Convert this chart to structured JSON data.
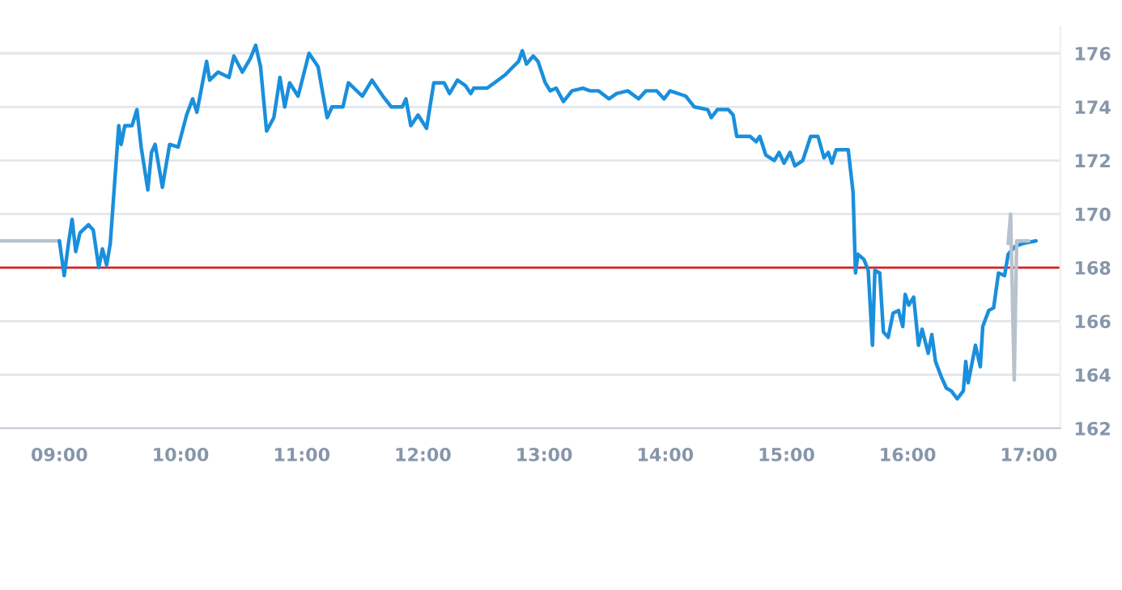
{
  "chart_data": {
    "type": "line",
    "series": [
      {
        "color": "#b8c2cc",
        "x": [
          8.51,
          9.0
        ],
        "values": [
          169.0,
          169.0
        ]
      },
      {
        "color": "#1a8fdc",
        "x": [
          9.0,
          9.04,
          9.075,
          9.105,
          9.135,
          9.17,
          9.24,
          9.28,
          9.325,
          9.355,
          9.39,
          9.42,
          9.49,
          9.51,
          9.54,
          9.6,
          9.64,
          9.675,
          9.73,
          9.76,
          9.79,
          9.85,
          9.91,
          9.98,
          10.05,
          10.1,
          10.135,
          10.215,
          10.24,
          10.31,
          10.4,
          10.44,
          10.51,
          10.575,
          10.62,
          10.66,
          10.71,
          10.77,
          10.82,
          10.86,
          10.9,
          10.97,
          11.06,
          11.135,
          11.17,
          11.21,
          11.25,
          11.34,
          11.385,
          11.5,
          11.58,
          11.67,
          11.74,
          11.83,
          11.86,
          11.9,
          11.96,
          12.03,
          12.09,
          12.175,
          12.22,
          12.285,
          12.35,
          12.395,
          12.42,
          12.53,
          12.59,
          12.68,
          12.745,
          12.79,
          12.82,
          12.855,
          12.91,
          12.95,
          13.01,
          13.05,
          13.1,
          13.16,
          13.23,
          13.32,
          13.38,
          13.45,
          13.535,
          13.6,
          13.69,
          13.78,
          13.84,
          13.93,
          13.99,
          14.04,
          14.17,
          14.24,
          14.35,
          14.38,
          14.43,
          14.52,
          14.56,
          14.59,
          14.7,
          14.75,
          14.78,
          14.83,
          14.9,
          14.94,
          14.98,
          15.03,
          15.07,
          15.135,
          15.2,
          15.26,
          15.31,
          15.345,
          15.375,
          15.41,
          15.51,
          15.55,
          15.57,
          15.59,
          15.64,
          15.675,
          15.71,
          15.73,
          15.77,
          15.8,
          15.84,
          15.88,
          15.925,
          15.96,
          15.98,
          16.01,
          16.05,
          16.09,
          16.12,
          16.17,
          16.2,
          16.23,
          16.28,
          16.32,
          16.36,
          16.41,
          16.46,
          16.48,
          16.5,
          16.56,
          16.6,
          16.62,
          16.67,
          16.71,
          16.75,
          16.8,
          16.83,
          16.89,
          16.95,
          17.06
        ],
        "values": [
          169.0,
          167.7,
          168.9,
          169.8,
          168.6,
          169.3,
          169.6,
          169.4,
          168.0,
          168.7,
          168.1,
          168.9,
          173.3,
          172.6,
          173.3,
          173.3,
          173.9,
          172.5,
          170.9,
          172.3,
          172.6,
          171.0,
          172.6,
          172.5,
          173.7,
          174.3,
          173.8,
          175.7,
          175.0,
          175.3,
          175.1,
          175.9,
          175.3,
          175.8,
          176.3,
          175.5,
          173.1,
          173.6,
          175.1,
          174.0,
          174.9,
          174.4,
          176.0,
          175.5,
          174.6,
          173.6,
          174.0,
          174.0,
          174.9,
          174.4,
          175.0,
          174.4,
          174.0,
          174.0,
          174.3,
          173.3,
          173.7,
          173.2,
          174.9,
          174.9,
          174.5,
          175.0,
          174.8,
          174.5,
          174.7,
          174.7,
          174.9,
          175.2,
          175.5,
          175.7,
          176.1,
          175.6,
          175.9,
          175.7,
          174.9,
          174.6,
          174.7,
          174.2,
          174.6,
          174.7,
          174.6,
          174.6,
          174.3,
          174.5,
          174.6,
          174.3,
          174.6,
          174.6,
          174.3,
          174.6,
          174.4,
          174.0,
          173.9,
          173.6,
          173.9,
          173.9,
          173.7,
          172.9,
          172.9,
          172.7,
          172.9,
          172.2,
          172.0,
          172.3,
          171.9,
          172.3,
          171.8,
          172.0,
          172.9,
          172.9,
          172.1,
          172.3,
          171.9,
          172.4,
          172.4,
          170.8,
          167.8,
          168.5,
          168.3,
          167.9,
          165.1,
          167.9,
          167.8,
          165.6,
          165.4,
          166.3,
          166.4,
          165.8,
          167.0,
          166.6,
          166.9,
          165.1,
          165.7,
          164.8,
          165.5,
          164.5,
          163.9,
          163.5,
          163.4,
          163.1,
          163.4,
          164.5,
          163.7,
          165.1,
          164.3,
          165.8,
          166.4,
          166.5,
          167.8,
          167.7,
          168.5,
          168.8,
          168.9,
          169.0
        ]
      },
      {
        "color": "#b8c2cc",
        "x": [
          16.83,
          16.85,
          16.88,
          16.9,
          16.95,
          17.0
        ],
        "values": [
          168.9,
          170.0,
          163.8,
          169.0,
          169.0,
          169.0
        ]
      }
    ],
    "xlim": [
      8.51,
      17.26
    ],
    "xticks": [
      {
        "value": 9,
        "label": "09:00"
      },
      {
        "value": 10,
        "label": "10:00"
      },
      {
        "value": 11,
        "label": "11:00"
      },
      {
        "value": 12,
        "label": "12:00"
      },
      {
        "value": 13,
        "label": "13:00"
      },
      {
        "value": 14,
        "label": "14:00"
      },
      {
        "value": 15,
        "label": "15:00"
      },
      {
        "value": 16,
        "label": "16:00"
      },
      {
        "value": 17,
        "label": "17:00"
      }
    ],
    "ylim": [
      162,
      177
    ],
    "yticks": [
      162,
      164,
      166,
      168,
      170,
      172,
      174,
      176
    ],
    "ref_lines": [
      {
        "axis": "y",
        "value": 168,
        "color": "#e02020"
      }
    ],
    "grid": "y"
  }
}
